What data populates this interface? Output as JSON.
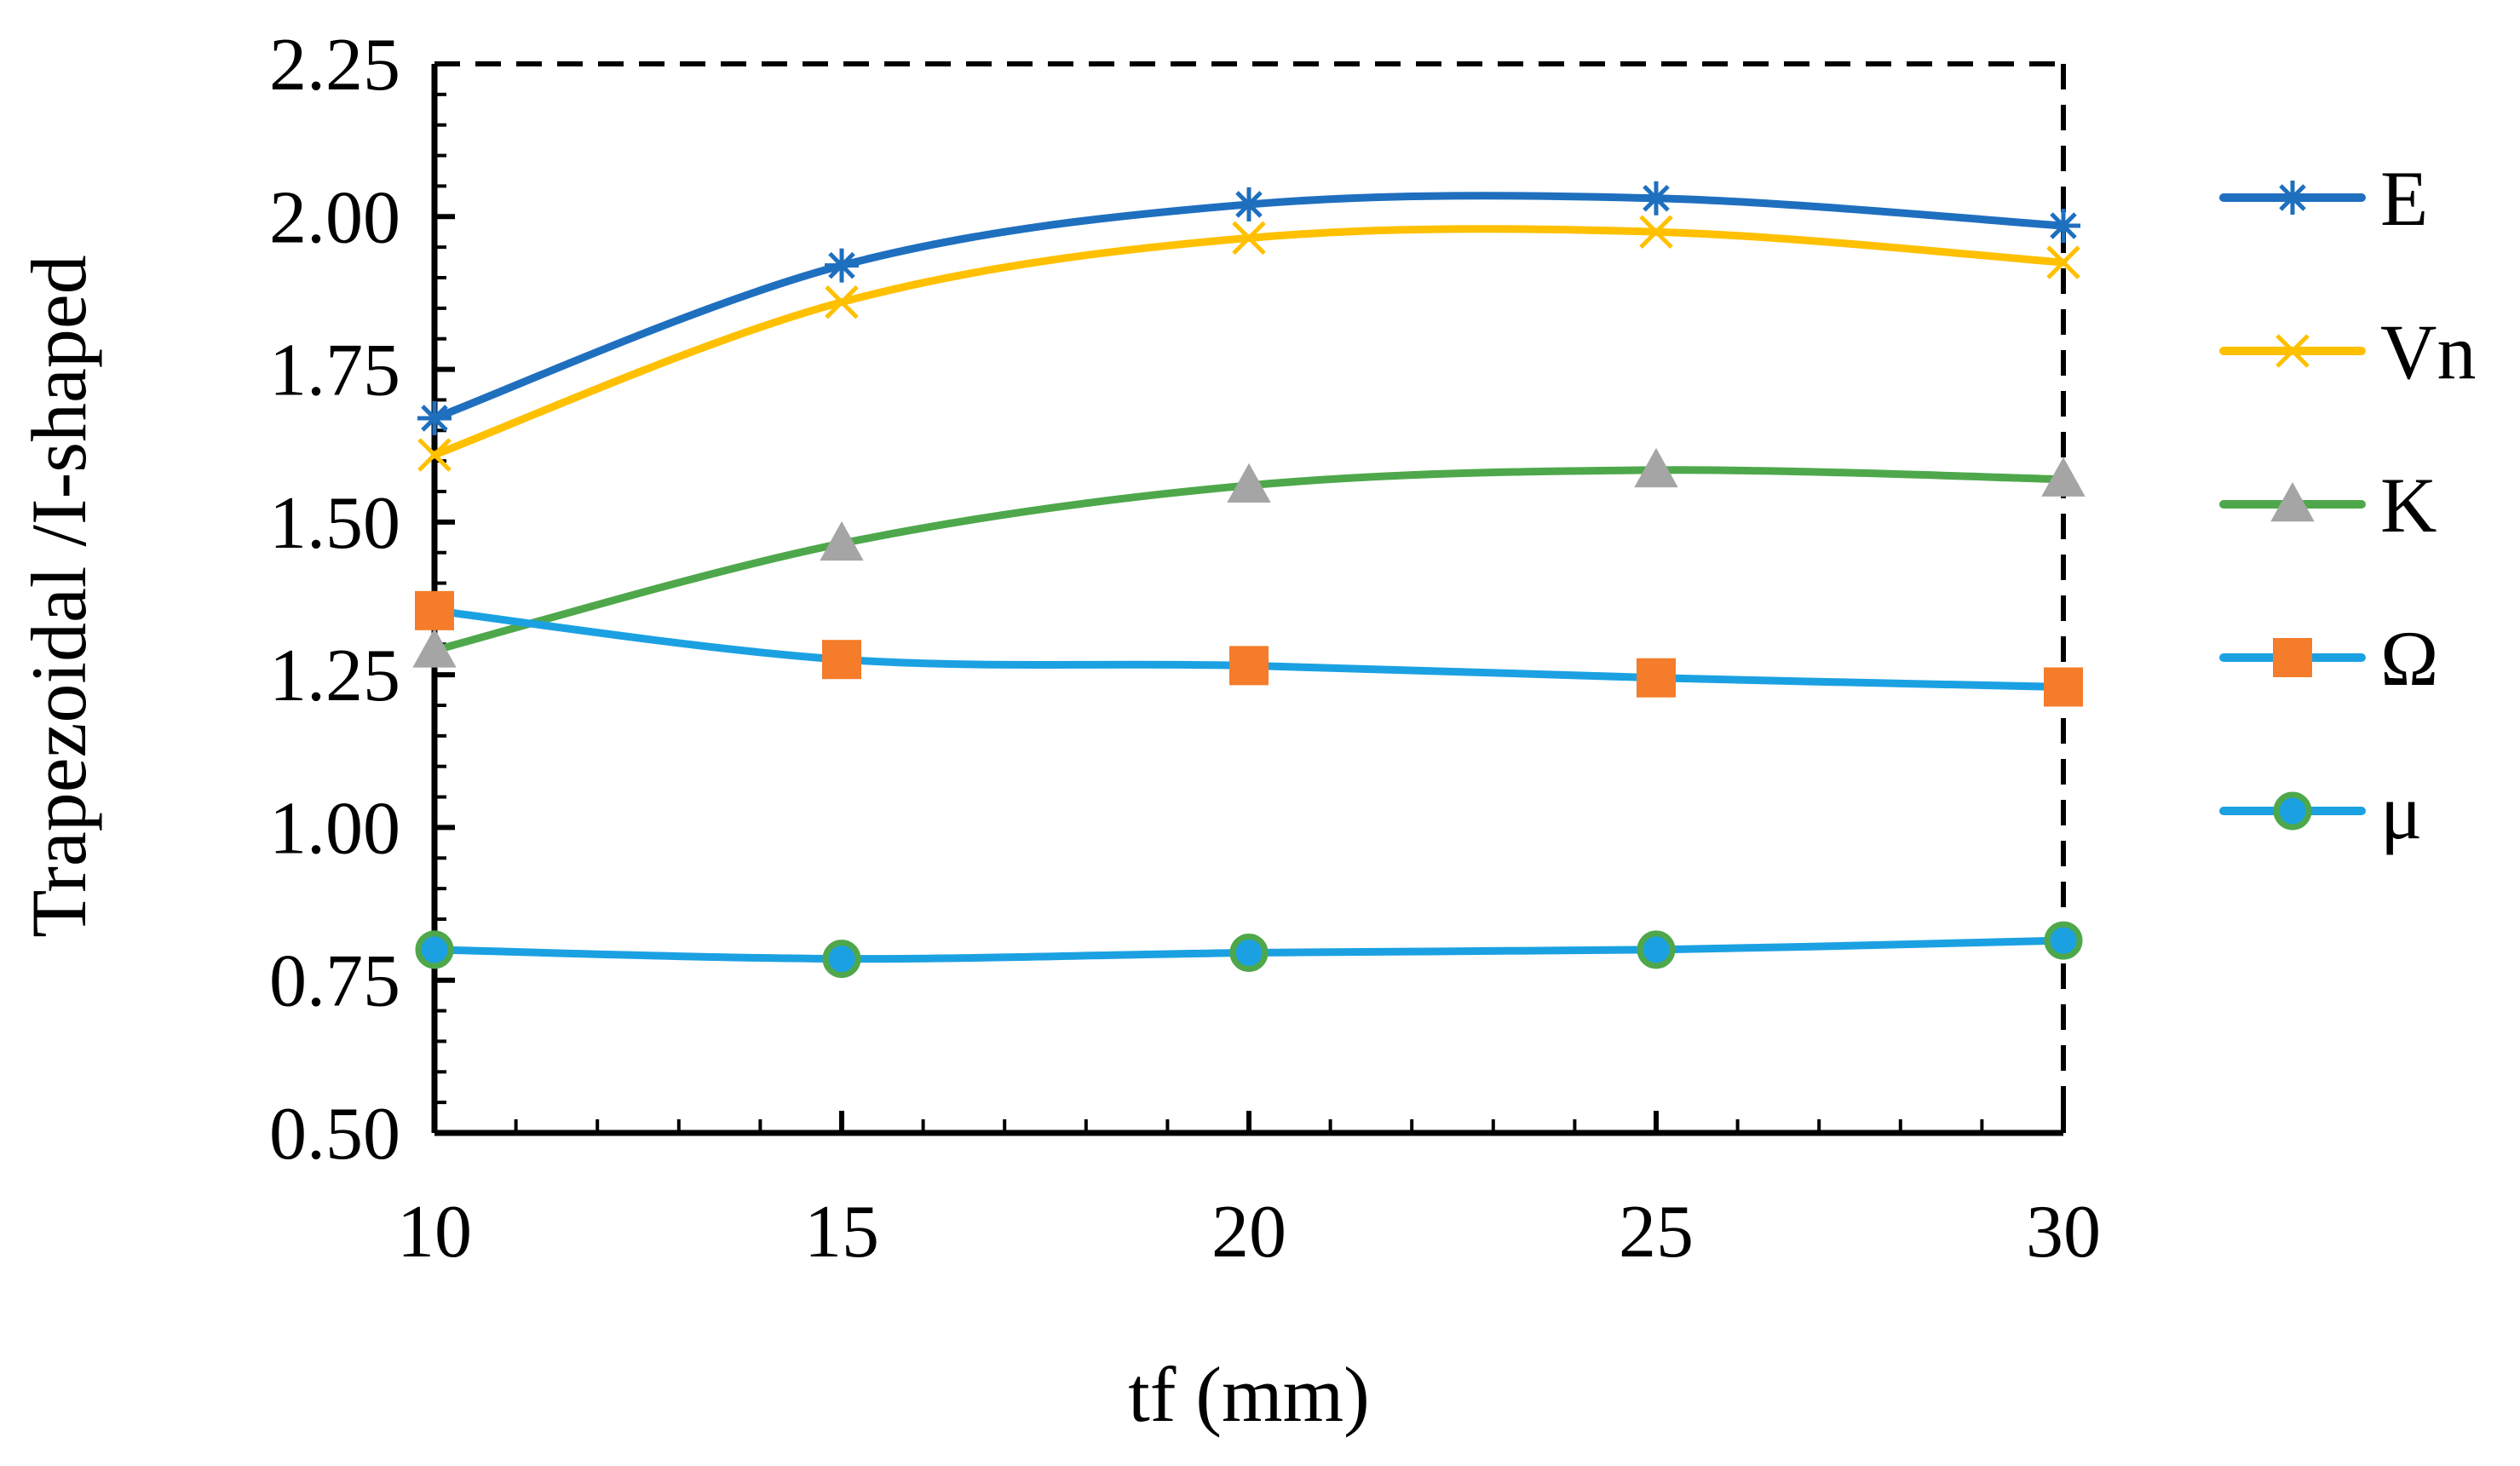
{
  "chart_data": {
    "type": "line",
    "title": "",
    "xlabel": "tf (mm)",
    "ylabel": "Trapezoidal /I-shaped",
    "x": [
      10,
      15,
      20,
      25,
      30
    ],
    "xlim": [
      10,
      30
    ],
    "ylim": [
      0.5,
      2.25
    ],
    "x_ticks": [
      "10",
      "15",
      "20",
      "25",
      "30"
    ],
    "y_ticks": [
      "0.50",
      "0.75",
      "1.00",
      "1.25",
      "1.50",
      "1.75",
      "2.00",
      "2.25"
    ],
    "grid": false,
    "legend_position": "right",
    "series": [
      {
        "name": "E",
        "values": [
          1.67,
          1.92,
          2.02,
          2.03,
          1.985
        ],
        "line_color": "#1F6FBF",
        "marker": "asterisk",
        "marker_color": "#1F6FBF",
        "marker_edge": "#1F6FBF"
      },
      {
        "name": "Vn",
        "values": [
          1.61,
          1.86,
          1.965,
          1.975,
          1.925
        ],
        "line_color": "#FFC000",
        "marker": "x",
        "marker_color": "#FFC000",
        "marker_edge": "#FFC000"
      },
      {
        "name": "K",
        "values": [
          1.29,
          1.465,
          1.56,
          1.585,
          1.57
        ],
        "line_color": "#4EA84B",
        "marker": "triangle",
        "marker_color": "#A5A5A5",
        "marker_edge": "#A5A5A5"
      },
      {
        "name": "Ω",
        "values": [
          1.355,
          1.275,
          1.265,
          1.245,
          1.23
        ],
        "line_color": "#1BA1E2",
        "marker": "square",
        "marker_color": "#F47C2A",
        "marker_edge": "#F47C2A"
      },
      {
        "name": "μ",
        "values": [
          0.8,
          0.785,
          0.795,
          0.8,
          0.815
        ],
        "line_color": "#1BA1E2",
        "marker": "circle",
        "marker_color": "#1BA1E2",
        "marker_edge": "#4EA84B"
      }
    ]
  }
}
